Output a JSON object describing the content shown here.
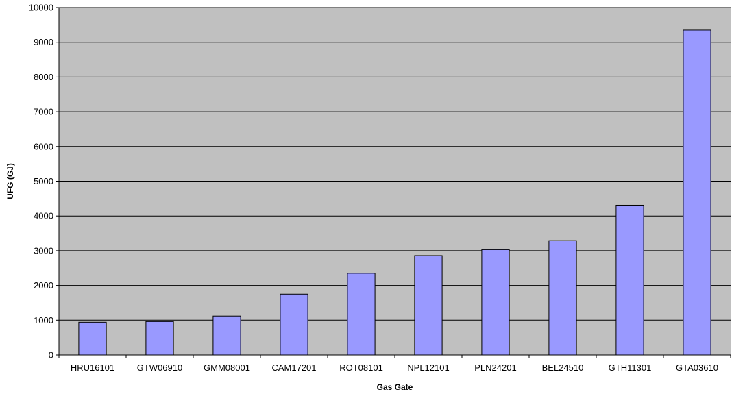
{
  "chart_data": {
    "type": "bar",
    "title": "",
    "xlabel": "Gas Gate",
    "ylabel": "UFG (GJ)",
    "categories": [
      "HRU16101",
      "GTW06910",
      "GMM08001",
      "CAM17201",
      "ROT08101",
      "NPL12101",
      "PLN24201",
      "BEL24510",
      "GTH11301",
      "GTA03610"
    ],
    "values": [
      940,
      960,
      1120,
      1750,
      2350,
      2860,
      3030,
      3290,
      4310,
      9350
    ],
    "ylim": [
      0,
      10000
    ],
    "yticks": [
      0,
      1000,
      2000,
      3000,
      4000,
      5000,
      6000,
      7000,
      8000,
      9000,
      10000
    ],
    "grid": true,
    "legend": "none",
    "colors": {
      "bar_fill": "#9999ff",
      "bar_stroke": "#000000",
      "plot_background": "#c0c0c0",
      "gridline": "#000000"
    }
  }
}
